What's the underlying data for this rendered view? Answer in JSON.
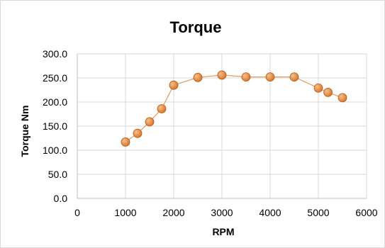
{
  "chart_data": {
    "type": "line",
    "title": "Torque",
    "xlabel": "RPM",
    "ylabel": "Torque Nm",
    "xlim": [
      0,
      6000
    ],
    "ylim": [
      0,
      300
    ],
    "x_ticks": [
      "0",
      "1000",
      "2000",
      "3000",
      "4000",
      "5000",
      "6000"
    ],
    "y_ticks": [
      "0.0",
      "50.0",
      "100.0",
      "150.0",
      "200.0",
      "250.0",
      "300.0"
    ],
    "grid": true,
    "series": [
      {
        "points": [
          {
            "x": 1000,
            "y": 117
          },
          {
            "x": 1250,
            "y": 135
          },
          {
            "x": 1500,
            "y": 159
          },
          {
            "x": 1750,
            "y": 186
          },
          {
            "x": 2000,
            "y": 235
          },
          {
            "x": 2500,
            "y": 251
          },
          {
            "x": 3000,
            "y": 256
          },
          {
            "x": 3500,
            "y": 252
          },
          {
            "x": 4000,
            "y": 252
          },
          {
            "x": 4500,
            "y": 252
          },
          {
            "x": 5000,
            "y": 229
          },
          {
            "x": 5200,
            "y": 220
          },
          {
            "x": 5500,
            "y": 209
          }
        ]
      }
    ],
    "colors": {
      "line": "#e69b5c",
      "marker_fill": "#d9782d",
      "marker_stroke": "#b85a1c",
      "marker_highlight": "#f5c08d"
    }
  }
}
